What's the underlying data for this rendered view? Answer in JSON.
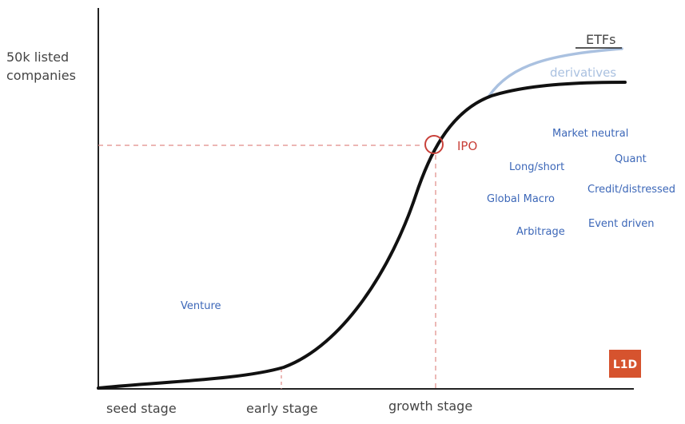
{
  "y_axis_label": [
    "50k listed",
    "companies"
  ],
  "stages": [
    "seed stage",
    "early stage",
    "growth stage"
  ],
  "curve_labels": {
    "etfs": "ETFs",
    "derivatives": "derivatives",
    "ipo": "IPO",
    "venture": "Venture"
  },
  "strategies": [
    "Market neutral",
    "Quant",
    "Long/short",
    "Credit/distressed",
    "Global Macro",
    "Event driven",
    "Arbitrage"
  ],
  "logo": "L1D"
}
